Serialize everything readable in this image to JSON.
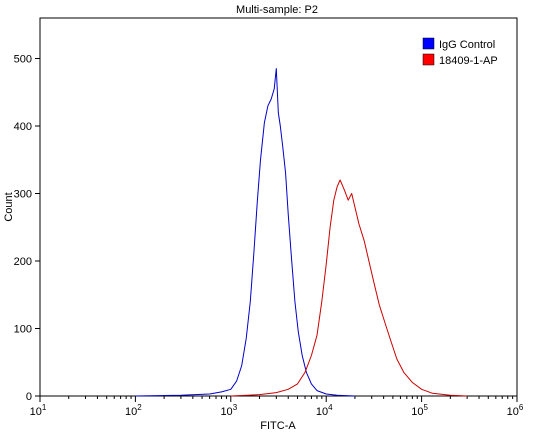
{
  "chart_data": {
    "type": "line",
    "title": "Multi-sample: P2",
    "xlabel": "FITC-A",
    "ylabel": "Count",
    "x_scale": "log",
    "xlim": [
      10,
      1000000
    ],
    "ylim": [
      0,
      560
    ],
    "x_ticks": [
      {
        "base": "10",
        "exp": "1"
      },
      {
        "base": "10",
        "exp": "2"
      },
      {
        "base": "10",
        "exp": "3"
      },
      {
        "base": "10",
        "exp": "4"
      },
      {
        "base": "10",
        "exp": "5"
      },
      {
        "base": "10",
        "exp": "6"
      }
    ],
    "y_ticks": [
      "0",
      "100",
      "200",
      "300",
      "400",
      "500"
    ],
    "legend_position": "top-right",
    "series": [
      {
        "name": "IgG Control",
        "color": "#0000cc",
        "points": [
          [
            100,
            0
          ],
          [
            300,
            1
          ],
          [
            600,
            3
          ],
          [
            800,
            6
          ],
          [
            1000,
            10
          ],
          [
            1150,
            22
          ],
          [
            1300,
            45
          ],
          [
            1450,
            85
          ],
          [
            1600,
            140
          ],
          [
            1750,
            215
          ],
          [
            1900,
            290
          ],
          [
            2050,
            350
          ],
          [
            2250,
            405
          ],
          [
            2450,
            430
          ],
          [
            2650,
            440
          ],
          [
            2850,
            455
          ],
          [
            3000,
            485
          ],
          [
            3150,
            420
          ],
          [
            3300,
            400
          ],
          [
            3500,
            370
          ],
          [
            3750,
            330
          ],
          [
            4000,
            270
          ],
          [
            4300,
            210
          ],
          [
            4700,
            140
          ],
          [
            5100,
            95
          ],
          [
            5600,
            60
          ],
          [
            6200,
            35
          ],
          [
            7000,
            18
          ],
          [
            8000,
            8
          ],
          [
            10000,
            3
          ],
          [
            13000,
            1
          ],
          [
            20000,
            0
          ]
        ]
      },
      {
        "name": "18409-1-AP",
        "color": "#cc0000",
        "points": [
          [
            1000,
            0
          ],
          [
            2000,
            2
          ],
          [
            3000,
            5
          ],
          [
            4000,
            10
          ],
          [
            5000,
            18
          ],
          [
            6000,
            35
          ],
          [
            7000,
            60
          ],
          [
            8000,
            90
          ],
          [
            9000,
            140
          ],
          [
            10000,
            195
          ],
          [
            11000,
            250
          ],
          [
            12000,
            290
          ],
          [
            13000,
            310
          ],
          [
            14000,
            320
          ],
          [
            15500,
            305
          ],
          [
            17000,
            290
          ],
          [
            18500,
            300
          ],
          [
            20000,
            280
          ],
          [
            22000,
            255
          ],
          [
            25000,
            230
          ],
          [
            28000,
            200
          ],
          [
            32000,
            165
          ],
          [
            36000,
            135
          ],
          [
            42000,
            105
          ],
          [
            48000,
            80
          ],
          [
            55000,
            55
          ],
          [
            65000,
            35
          ],
          [
            80000,
            20
          ],
          [
            100000,
            10
          ],
          [
            130000,
            4
          ],
          [
            200000,
            1
          ],
          [
            300000,
            0
          ]
        ]
      }
    ]
  }
}
